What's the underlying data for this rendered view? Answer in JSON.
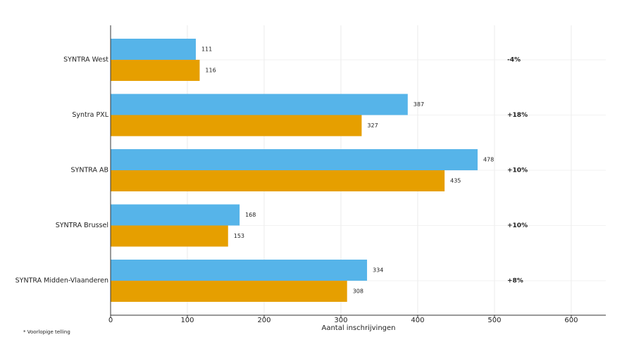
{
  "chart_data": {
    "type": "barh",
    "categories": [
      "SYNTRA West",
      "Syntra PXL",
      "SYNTRA AB",
      "SYNTRA Brussel",
      "SYNTRA Midden-Vlaanderen"
    ],
    "series": [
      {
        "color": "#56b4e9",
        "values": [
          111,
          387,
          478,
          168,
          334
        ]
      },
      {
        "color": "#e69f00",
        "values": [
          116,
          327,
          435,
          153,
          308
        ]
      }
    ],
    "annotations": [
      "-4%",
      "+18%",
      "+10%",
      "+10%",
      "+8%"
    ],
    "xlabel": "Aantal inschrijvingen",
    "footnote": "* Voorlopige telling",
    "xlim": [
      0,
      645
    ],
    "xticks": [
      0,
      100,
      200,
      300,
      400,
      500,
      600
    ],
    "grid": true
  }
}
